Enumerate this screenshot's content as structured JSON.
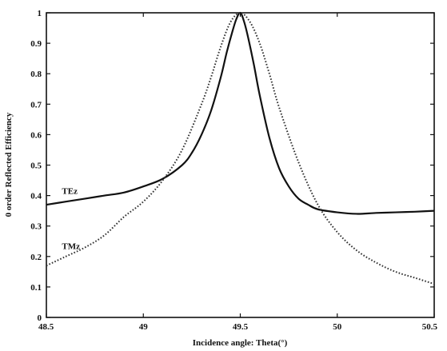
{
  "chart_data": {
    "type": "line",
    "title": "",
    "xlabel": "Incidence angle: Theta(°)",
    "ylabel": "0 order Reflected Efficiency",
    "xlim": [
      48.5,
      50.5
    ],
    "ylim": [
      0,
      1
    ],
    "x_ticks": [
      "48.5",
      "49",
      "49.5",
      "50",
      "50.5"
    ],
    "y_ticks": [
      "0",
      "0.1",
      "0.2",
      "0.3",
      "0.4",
      "0.5",
      "0.6",
      "0.7",
      "0.8",
      "0.9",
      "1"
    ],
    "grid": false,
    "legend": "inline labels",
    "series": [
      {
        "name": "TEz",
        "style": "solid",
        "color": "#111111",
        "x": [
          48.5,
          48.6,
          48.7,
          48.8,
          48.9,
          49.0,
          49.1,
          49.2,
          49.25,
          49.3,
          49.35,
          49.4,
          49.43,
          49.46,
          49.48,
          49.5,
          49.52,
          49.54,
          49.57,
          49.6,
          49.65,
          49.7,
          49.75,
          49.8,
          49.85,
          49.9,
          50.0,
          50.1,
          50.2,
          50.3,
          50.4,
          50.5
        ],
        "y": [
          0.37,
          0.38,
          0.39,
          0.4,
          0.41,
          0.43,
          0.455,
          0.5,
          0.54,
          0.6,
          0.68,
          0.79,
          0.87,
          0.94,
          0.98,
          1.0,
          0.97,
          0.92,
          0.83,
          0.73,
          0.59,
          0.49,
          0.43,
          0.39,
          0.37,
          0.355,
          0.345,
          0.34,
          0.343,
          0.345,
          0.347,
          0.35
        ]
      },
      {
        "name": "TMz",
        "style": "dotted",
        "color": "#333333",
        "x": [
          48.5,
          48.6,
          48.7,
          48.8,
          48.9,
          49.0,
          49.1,
          49.2,
          49.3,
          49.35,
          49.4,
          49.45,
          49.5,
          49.55,
          49.6,
          49.65,
          49.7,
          49.8,
          49.9,
          50.0,
          50.1,
          50.2,
          50.3,
          50.4,
          50.5
        ],
        "y": [
          0.17,
          0.2,
          0.23,
          0.27,
          0.33,
          0.38,
          0.45,
          0.55,
          0.7,
          0.79,
          0.89,
          0.97,
          1.0,
          0.97,
          0.9,
          0.8,
          0.69,
          0.51,
          0.37,
          0.28,
          0.22,
          0.18,
          0.15,
          0.13,
          0.11
        ]
      }
    ]
  }
}
